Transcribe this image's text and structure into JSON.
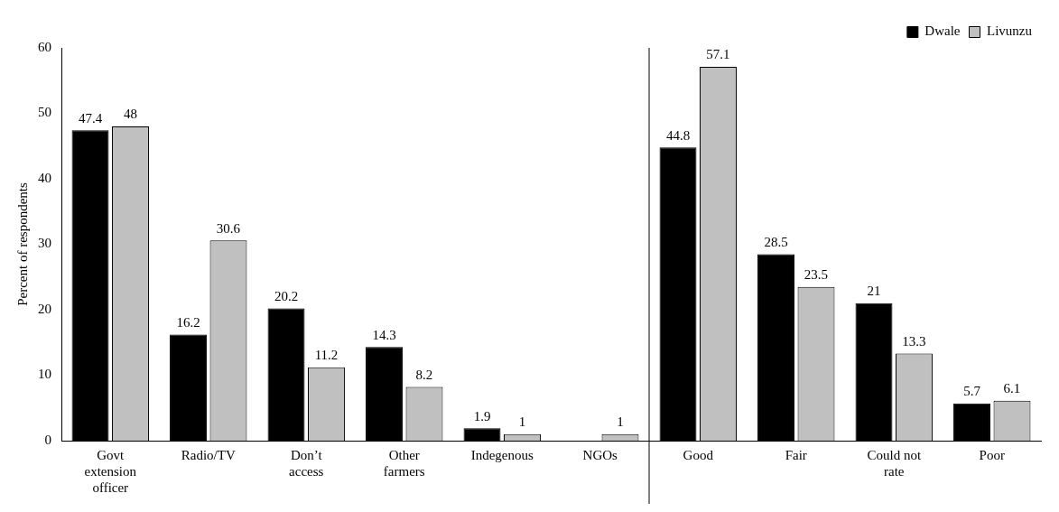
{
  "chart_data": {
    "type": "bar",
    "ylabel": "Percent of respondents",
    "categories": [
      "Govt extension officer",
      "Radio/TV",
      "Don’t access",
      "Other farmers",
      "Indegenous",
      "NGOs",
      "Good",
      "Fair",
      "Could not rate",
      "Poor"
    ],
    "series": [
      {
        "name": "Dwale",
        "color": "#000000",
        "values": [
          47.4,
          16.2,
          20.2,
          14.3,
          1.9,
          null,
          44.8,
          28.5,
          21,
          5.7
        ]
      },
      {
        "name": "Livunzu",
        "color": "#c0c0c0",
        "values": [
          48,
          30.6,
          11.2,
          8.2,
          1,
          1,
          57.1,
          23.5,
          13.3,
          6.1
        ]
      }
    ],
    "ylim": [
      0,
      60
    ],
    "yticks": [
      0,
      10,
      20,
      30,
      40,
      50,
      60
    ],
    "grid": false,
    "legend": "top right",
    "data_labels": true
  }
}
